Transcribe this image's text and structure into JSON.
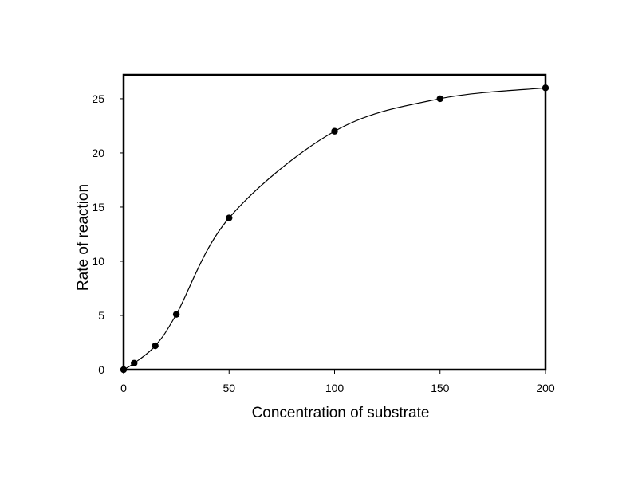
{
  "chart_data": {
    "type": "line",
    "title": "",
    "xlabel": "Concentration of substrate",
    "ylabel": "Rate of reaction",
    "x": [
      0,
      5,
      15,
      25,
      50,
      100,
      150,
      200
    ],
    "series": [
      {
        "name": "Rate of reaction",
        "values": [
          0,
          0.6,
          2.2,
          5.1,
          14,
          22,
          25,
          26
        ],
        "marker": "circle",
        "line": "smooth"
      }
    ],
    "xlim": [
      0,
      200
    ],
    "ylim": [
      0,
      27.2
    ],
    "xticks": [
      0,
      50,
      100,
      150,
      200
    ],
    "yticks": [
      0,
      5,
      10,
      15,
      20,
      25
    ],
    "grid": false,
    "legend": null
  },
  "colors": {
    "line": "#000000",
    "marker": "#000000",
    "background": "#ffffff"
  }
}
